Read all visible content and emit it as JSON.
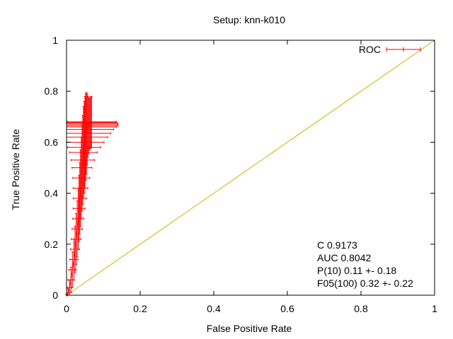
{
  "chart_data": {
    "type": "line",
    "title": "Setup: knn-k010",
    "xlabel": "False Positive Rate",
    "ylabel": "True Positive Rate",
    "xlim": [
      0,
      1
    ],
    "ylim": [
      0,
      1
    ],
    "x_ticks": [
      "0",
      "0.2",
      "0.4",
      "0.6",
      "0.8",
      "1"
    ],
    "y_ticks": [
      "0",
      "0.2",
      "0.4",
      "0.6",
      "0.8",
      "1"
    ],
    "grid": false,
    "legend_position": "top-right",
    "series": [
      {
        "name": "ROC",
        "color": "#ff0000",
        "points": [
          {
            "x": 0.0,
            "y": 0.0,
            "xerr": 0.002,
            "yerr": 0.005
          },
          {
            "x": 0.004,
            "y": 0.01,
            "xerr": 0.004,
            "yerr": 0.015
          },
          {
            "x": 0.008,
            "y": 0.03,
            "xerr": 0.006,
            "yerr": 0.03
          },
          {
            "x": 0.012,
            "y": 0.06,
            "xerr": 0.008,
            "yerr": 0.05
          },
          {
            "x": 0.016,
            "y": 0.1,
            "xerr": 0.01,
            "yerr": 0.07
          },
          {
            "x": 0.02,
            "y": 0.14,
            "xerr": 0.011,
            "yerr": 0.08
          },
          {
            "x": 0.023,
            "y": 0.18,
            "xerr": 0.012,
            "yerr": 0.09
          },
          {
            "x": 0.026,
            "y": 0.22,
            "xerr": 0.013,
            "yerr": 0.1
          },
          {
            "x": 0.029,
            "y": 0.26,
            "xerr": 0.014,
            "yerr": 0.11
          },
          {
            "x": 0.032,
            "y": 0.3,
            "xerr": 0.015,
            "yerr": 0.12
          },
          {
            "x": 0.034,
            "y": 0.34,
            "xerr": 0.016,
            "yerr": 0.13
          },
          {
            "x": 0.036,
            "y": 0.38,
            "xerr": 0.018,
            "yerr": 0.14
          },
          {
            "x": 0.038,
            "y": 0.42,
            "xerr": 0.02,
            "yerr": 0.15
          },
          {
            "x": 0.04,
            "y": 0.46,
            "xerr": 0.023,
            "yerr": 0.16
          },
          {
            "x": 0.042,
            "y": 0.5,
            "xerr": 0.027,
            "yerr": 0.17
          },
          {
            "x": 0.044,
            "y": 0.53,
            "xerr": 0.032,
            "yerr": 0.175
          },
          {
            "x": 0.046,
            "y": 0.56,
            "xerr": 0.038,
            "yerr": 0.18
          },
          {
            "x": 0.048,
            "y": 0.58,
            "xerr": 0.045,
            "yerr": 0.18
          },
          {
            "x": 0.05,
            "y": 0.6,
            "xerr": 0.052,
            "yerr": 0.18
          },
          {
            "x": 0.052,
            "y": 0.62,
            "xerr": 0.06,
            "yerr": 0.17
          },
          {
            "x": 0.054,
            "y": 0.635,
            "xerr": 0.066,
            "yerr": 0.16
          },
          {
            "x": 0.056,
            "y": 0.65,
            "xerr": 0.072,
            "yerr": 0.14
          },
          {
            "x": 0.058,
            "y": 0.66,
            "xerr": 0.078,
            "yerr": 0.12
          },
          {
            "x": 0.06,
            "y": 0.665,
            "xerr": 0.08,
            "yerr": 0.11
          },
          {
            "x": 0.062,
            "y": 0.67,
            "xerr": 0.078,
            "yerr": 0.1
          },
          {
            "x": 0.064,
            "y": 0.675,
            "xerr": 0.075,
            "yerr": 0.1
          },
          {
            "x": 0.066,
            "y": 0.678,
            "xerr": 0.07,
            "yerr": 0.1
          },
          {
            "x": 0.068,
            "y": 0.68,
            "xerr": 0.066,
            "yerr": 0.1
          }
        ]
      },
      {
        "name": "",
        "color": "#c8b400",
        "points": [
          {
            "x": 0,
            "y": 0
          },
          {
            "x": 1,
            "y": 1
          }
        ]
      }
    ],
    "annotations": [
      "C 0.9173",
      "AUC 0.8042",
      "P(10) 0.11 +- 0.18",
      "F05(100) 0.32 +- 0.22"
    ]
  }
}
